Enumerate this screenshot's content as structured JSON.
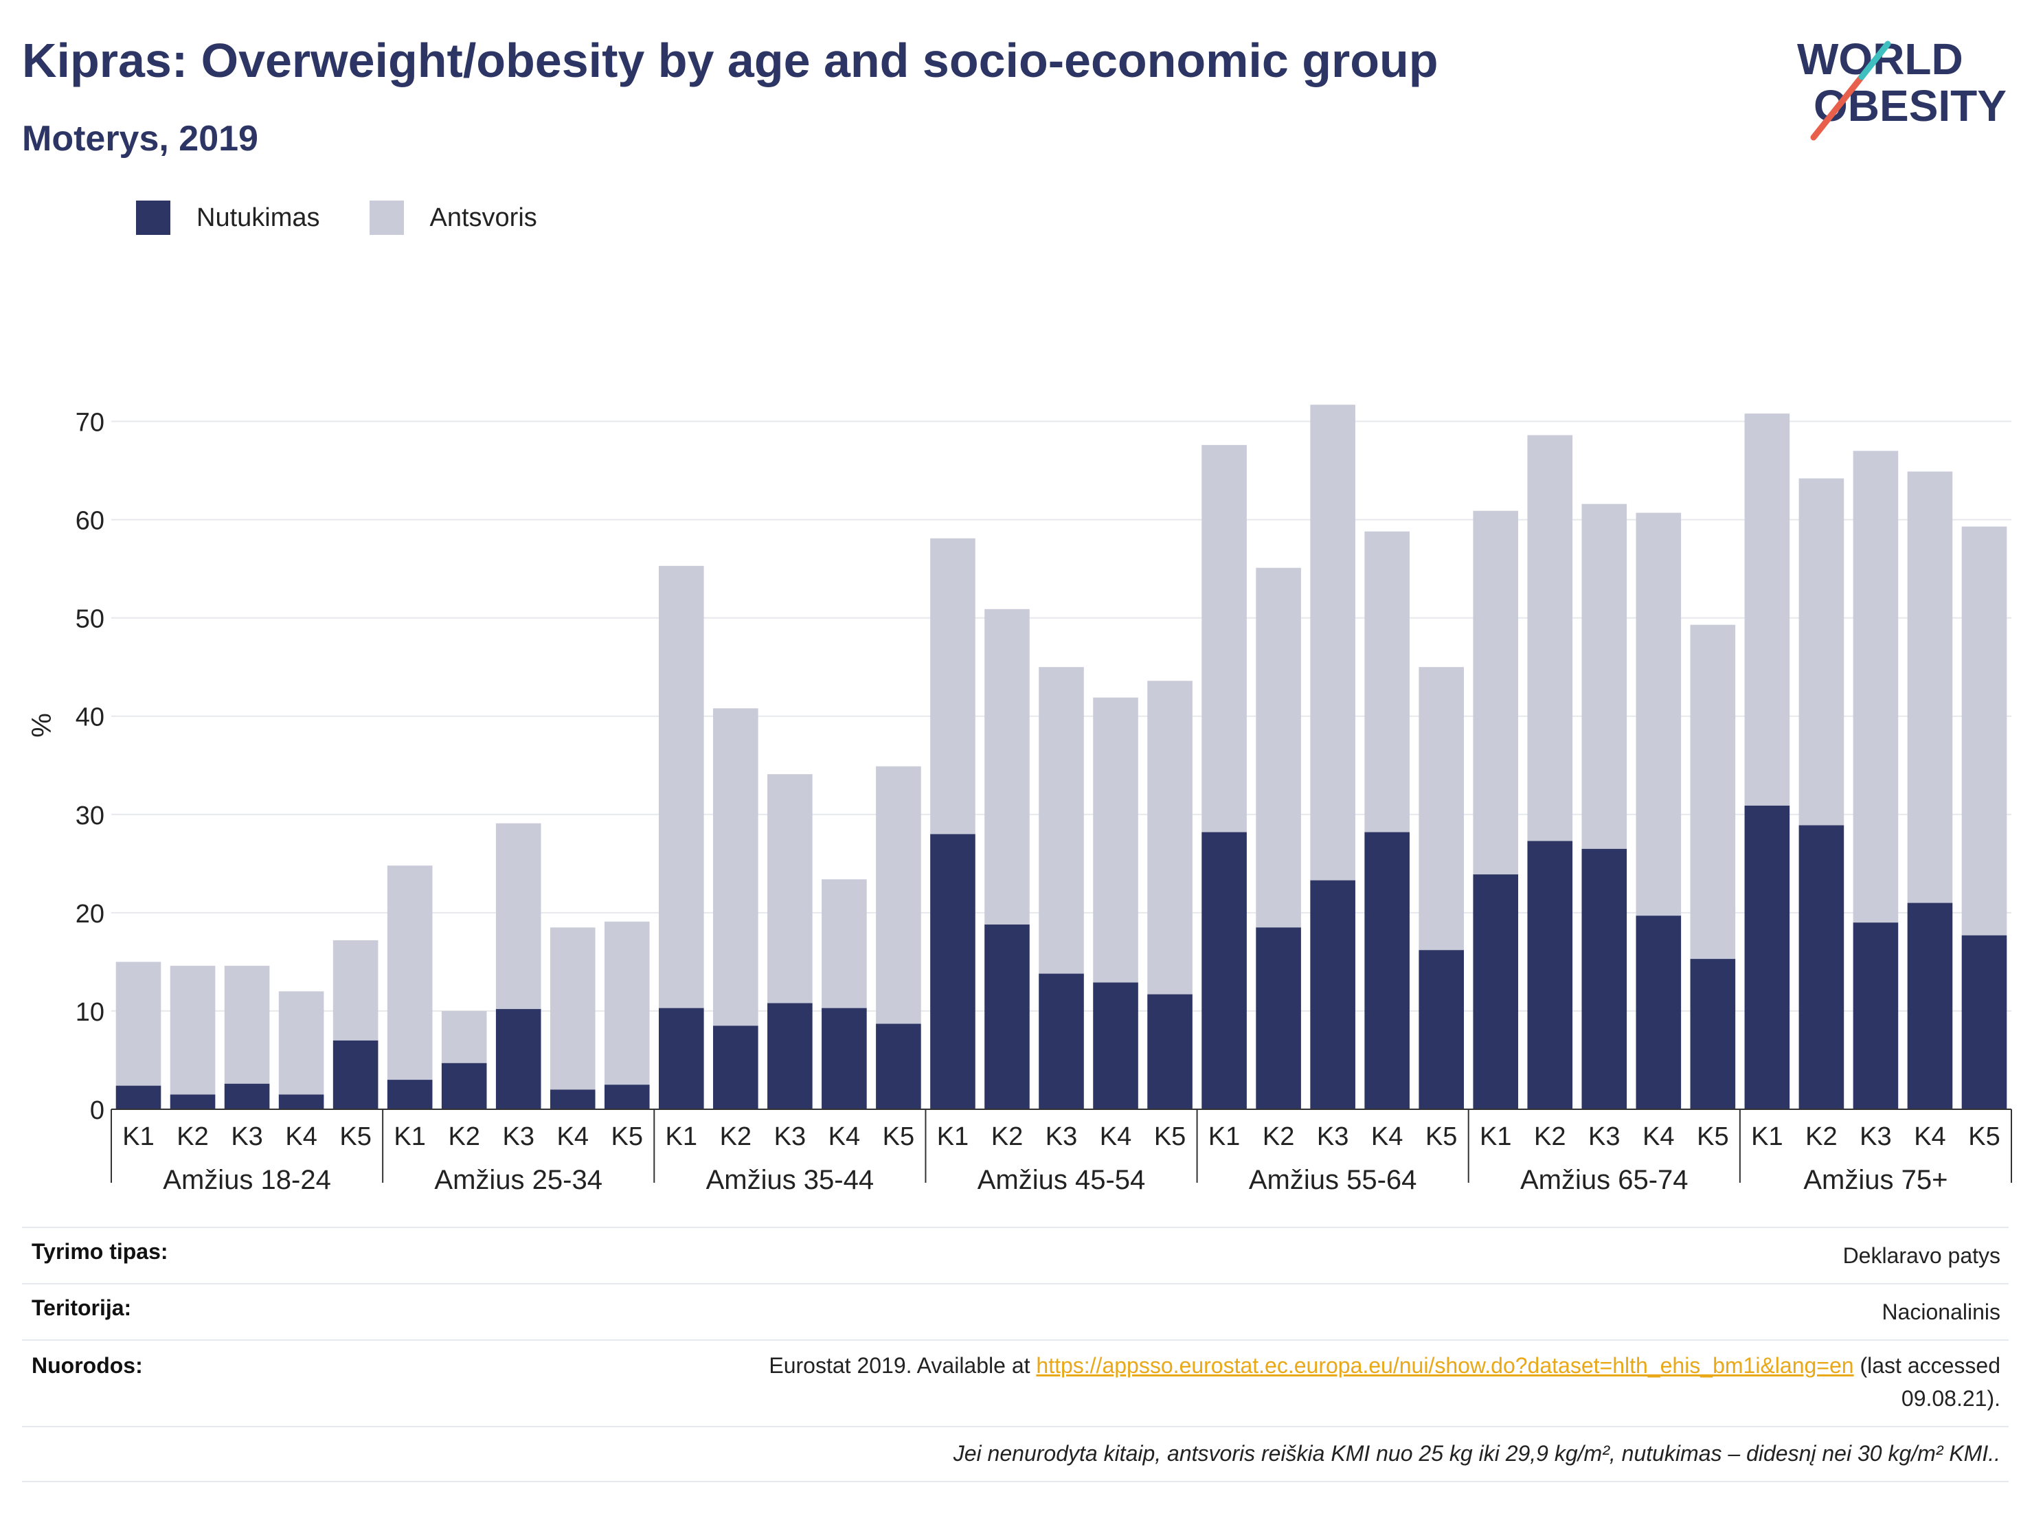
{
  "header": {
    "title": "Kipras: Overweight/obesity by age and socio-economic group",
    "subtitle": "Moterys, 2019"
  },
  "logo": {
    "line1": "WORLD",
    "line2": "OBESITY",
    "colors": [
      "#2c3563",
      "#e8604c",
      "#3fbfbf"
    ]
  },
  "legend": [
    {
      "label": "Nutukimas",
      "color": "#2c3563"
    },
    {
      "label": "Antsvoris",
      "color": "#c9cbd8"
    }
  ],
  "chart_data": {
    "type": "bar",
    "stacked": true,
    "ylabel": "%",
    "ylim": [
      0,
      75
    ],
    "yticks": [
      0,
      10,
      20,
      30,
      40,
      50,
      60,
      70
    ],
    "grid": true,
    "legend_position": "top-left",
    "groups": [
      "Amžius 18-24",
      "Amžius 25-34",
      "Amžius 35-44",
      "Amžius 45-54",
      "Amžius 55-64",
      "Amžius 65-74",
      "Amžius 75+"
    ],
    "categories": [
      "K1",
      "K2",
      "K3",
      "K4",
      "K5"
    ],
    "series": [
      {
        "name": "Nutukimas",
        "color": "#2c3563",
        "values": [
          [
            2.4,
            1.5,
            2.6,
            1.5,
            7.0
          ],
          [
            3.0,
            4.7,
            10.2,
            2.0,
            2.5
          ],
          [
            10.3,
            8.5,
            10.8,
            10.3,
            8.7
          ],
          [
            28.0,
            18.8,
            13.8,
            12.9,
            11.7
          ],
          [
            28.2,
            18.5,
            23.3,
            28.2,
            16.2
          ],
          [
            23.9,
            27.3,
            26.5,
            19.7,
            15.3
          ],
          [
            30.9,
            28.9,
            19.0,
            21.0,
            17.7
          ]
        ]
      },
      {
        "name": "Antsvoris",
        "color": "#c9cbd8",
        "values": [
          [
            12.6,
            13.1,
            12.0,
            10.5,
            10.2
          ],
          [
            21.8,
            5.3,
            18.9,
            16.5,
            16.6
          ],
          [
            45.0,
            32.3,
            23.3,
            13.1,
            26.2
          ],
          [
            30.1,
            32.1,
            31.2,
            29.0,
            31.9
          ],
          [
            39.4,
            36.6,
            48.4,
            30.6,
            28.8
          ],
          [
            37.0,
            41.3,
            35.1,
            41.0,
            34.0
          ],
          [
            39.9,
            35.3,
            48.0,
            43.9,
            41.6
          ]
        ]
      }
    ]
  },
  "info": {
    "rows": [
      {
        "key": "Tyrimo tipas:",
        "value": "Deklaravo patys"
      },
      {
        "key": "Teritorija:",
        "value": "Nacionalinis"
      }
    ],
    "refs": {
      "key": "Nuorodos:",
      "prefix": "Eurostat 2019. Available at ",
      "link": "https://appsso.eurostat.ec.europa.eu/nui/show.do?dataset=hlth_ehis_bm1i&lang=en",
      "suffix": " (last accessed",
      "suffix2": "09.08.21)."
    },
    "note": "Jei nenurodyta kitaip, antsvoris reiškia KMI nuo 25 kg iki 29,9 kg/m², nutukimas – didesnį nei 30 kg/m² KMI.."
  }
}
